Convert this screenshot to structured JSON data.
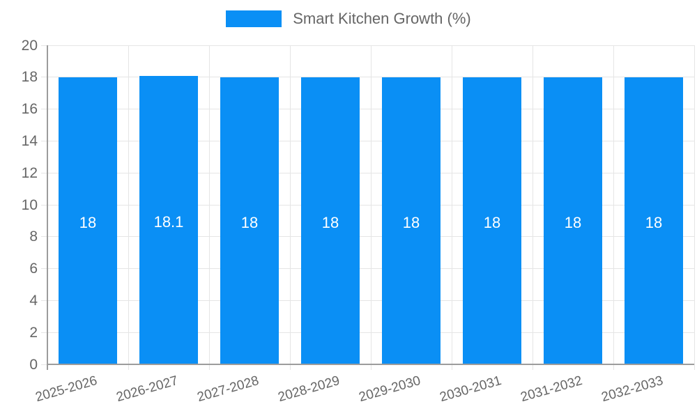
{
  "chart_data": {
    "type": "bar",
    "title": "",
    "legend": {
      "label": "Smart Kitchen Growth (%)",
      "position": "top"
    },
    "categories": [
      "2025-2026",
      "2026-2027",
      "2027-2028",
      "2028-2029",
      "2029-2030",
      "2030-2031",
      "2031-2032",
      "2032-2033"
    ],
    "series": [
      {
        "name": "Smart Kitchen Growth (%)",
        "values": [
          18,
          18.1,
          18,
          18,
          18,
          18,
          18,
          18
        ]
      }
    ],
    "bar_value_labels": [
      "18",
      "18.1",
      "18",
      "18",
      "18",
      "18",
      "18",
      "18"
    ],
    "ylim": [
      0,
      20
    ],
    "yticks": [
      0,
      2,
      4,
      6,
      8,
      10,
      12,
      14,
      16,
      18,
      20
    ],
    "xlabel": "",
    "ylabel": "",
    "grid": true,
    "legend_position": "top",
    "colors": {
      "bar_fill": "#0a8ff5",
      "bar_value_text": "#ffffff",
      "grid_line": "#e5e5e5",
      "axis_line": "#9c9c9c",
      "tick_text": "#666666",
      "legend_text": "#666666",
      "background": "#ffffff"
    }
  }
}
